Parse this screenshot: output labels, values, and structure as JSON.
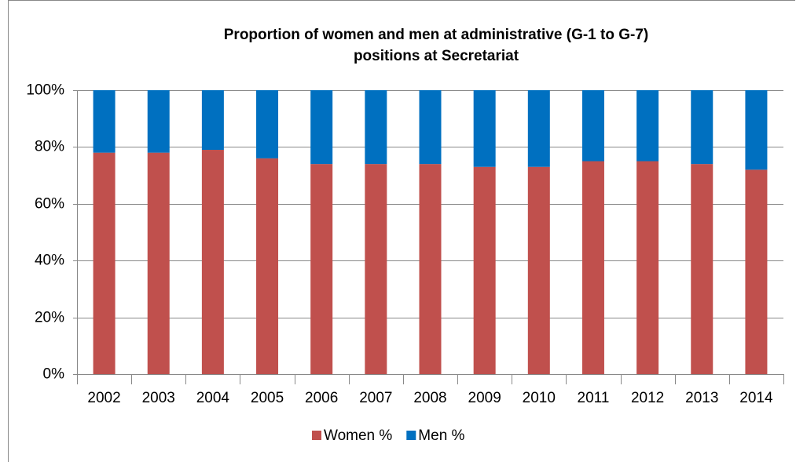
{
  "chart_data": {
    "type": "stacked_bar",
    "title": [
      "Proportion of women and men at administrative (G-1 to G-7)",
      "positions at Secretariat"
    ],
    "categories": [
      "2002",
      "2003",
      "2004",
      "2005",
      "2006",
      "2007",
      "2008",
      "2009",
      "2010",
      "2011",
      "2012",
      "2013",
      "2014"
    ],
    "series": [
      {
        "name": "Women %",
        "color": "#c0504d",
        "values": [
          78,
          78,
          79,
          76,
          74,
          74,
          74,
          73,
          73,
          75,
          75,
          74,
          72
        ]
      },
      {
        "name": "Men %",
        "color": "#0070c0",
        "values": [
          22,
          22,
          21,
          24,
          26,
          26,
          26,
          27,
          27,
          25,
          25,
          26,
          28
        ]
      }
    ],
    "ylim": [
      0,
      100
    ],
    "yticks": [
      {
        "value": 0,
        "label": "0%"
      },
      {
        "value": 20,
        "label": "20%"
      },
      {
        "value": 40,
        "label": "40%"
      },
      {
        "value": 60,
        "label": "60%"
      },
      {
        "value": 80,
        "label": "80%"
      },
      {
        "value": 100,
        "label": "100%"
      }
    ],
    "grid": true,
    "legend": "bottom"
  }
}
